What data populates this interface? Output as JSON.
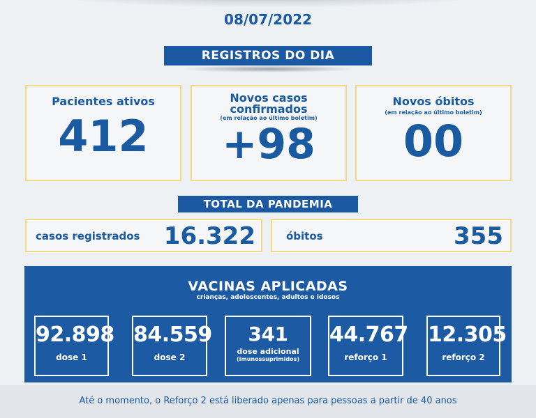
{
  "date": "08/07/2022",
  "daily_banner": "REGISTROS DO DIA",
  "cards": {
    "active": {
      "title": "Pacientes ativos",
      "value": "412"
    },
    "new_cases": {
      "title_line1": "Novos casos",
      "title_line2": "confirmados",
      "note": "(em relação ao último boletim)",
      "value": "+98"
    },
    "new_deaths": {
      "title": "Novos óbitos",
      "note": "(em relação ao último boletim)",
      "value": "00"
    }
  },
  "total_banner": "TOTAL DA PANDEMIA",
  "totals": {
    "cases": {
      "label": "casos registrados",
      "value": "16.322"
    },
    "deaths": {
      "label": "óbitos",
      "value": "355"
    }
  },
  "vaccines": {
    "title": "VACINAS APLICADAS",
    "subtitle": "crianças, adolescentes, adultos e idosos",
    "doses": [
      {
        "value": "92.898",
        "label": "dose 1"
      },
      {
        "value": "84.559",
        "label": "dose 2"
      },
      {
        "value": "341",
        "label": "dose adicional",
        "label2": "(imunossuprimidos)"
      },
      {
        "value": "44.767",
        "label": "reforço 1"
      },
      {
        "value": "12.305",
        "label": "reforço 2"
      }
    ]
  },
  "footer": "Até o momento, o Reforço 2 está liberado apenas para pessoas a partir de 40 anos",
  "colors": {
    "primary_blue": "#1b5aa3",
    "card_border": "#f1d987",
    "background": "#eef1f4"
  }
}
